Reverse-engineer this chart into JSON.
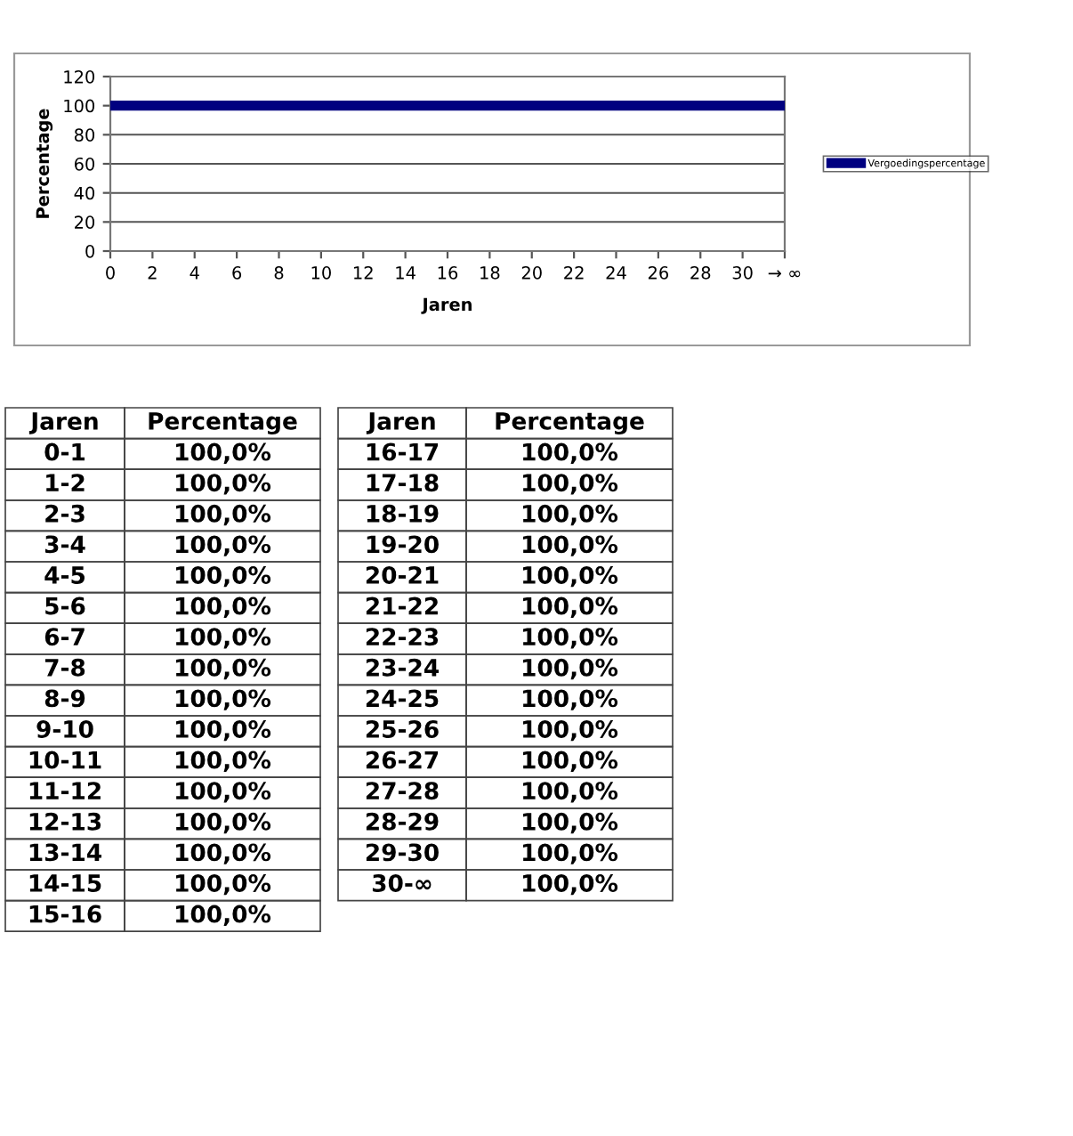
{
  "chart_data": [
    {
      "type": "line",
      "xlabel": "Jaren",
      "ylabel": "Percentage",
      "x": [
        0,
        32
      ],
      "series": [
        {
          "name": "Vergoedingspercentage",
          "color": "#000080",
          "values": [
            100,
            100
          ]
        }
      ],
      "xlim": [
        0,
        32
      ],
      "xticks": [
        0,
        2,
        4,
        6,
        8,
        10,
        12,
        14,
        16,
        18,
        20,
        22,
        24,
        26,
        28,
        30,
        {
          "value": 32,
          "label": "→ ∞"
        }
      ],
      "ylim": [
        0,
        120
      ],
      "yticks": [
        0,
        20,
        40,
        60,
        80,
        100,
        120
      ],
      "grid": "y",
      "legend": "right",
      "marker": "none",
      "line_style": "solid"
    },
    {
      "type": "other",
      "xlabel": "Jaren",
      "ylabel": "Percentage",
      "categories": [
        "0-1",
        "1-2",
        "2-3",
        "3-4",
        "4-5",
        "5-6",
        "6-7",
        "7-8",
        "8-9",
        "9-10",
        "10-11",
        "11-12",
        "12-13",
        "13-14",
        "14-15",
        "15-16",
        "16-17",
        "17-18",
        "18-19",
        "19-20",
        "20-21",
        "21-22",
        "22-23",
        "23-24",
        "24-25",
        "25-26",
        "26-27",
        "27-28",
        "28-29",
        "29-30",
        "30-∞"
      ],
      "value_labels": [
        "100,0%",
        "100,0%",
        "100,0%",
        "100,0%",
        "100,0%",
        "100,0%",
        "100,0%",
        "100,0%",
        "100,0%",
        "100,0%",
        "100,0%",
        "100,0%",
        "100,0%",
        "100,0%",
        "100,0%",
        "100,0%",
        "100,0%",
        "100,0%",
        "100,0%",
        "100,0%",
        "100,0%",
        "100,0%",
        "100,0%",
        "100,0%",
        "100,0%",
        "100,0%",
        "100,0%",
        "100,0%",
        "100,0%",
        "100,0%",
        "100,0%"
      ]
    }
  ]
}
